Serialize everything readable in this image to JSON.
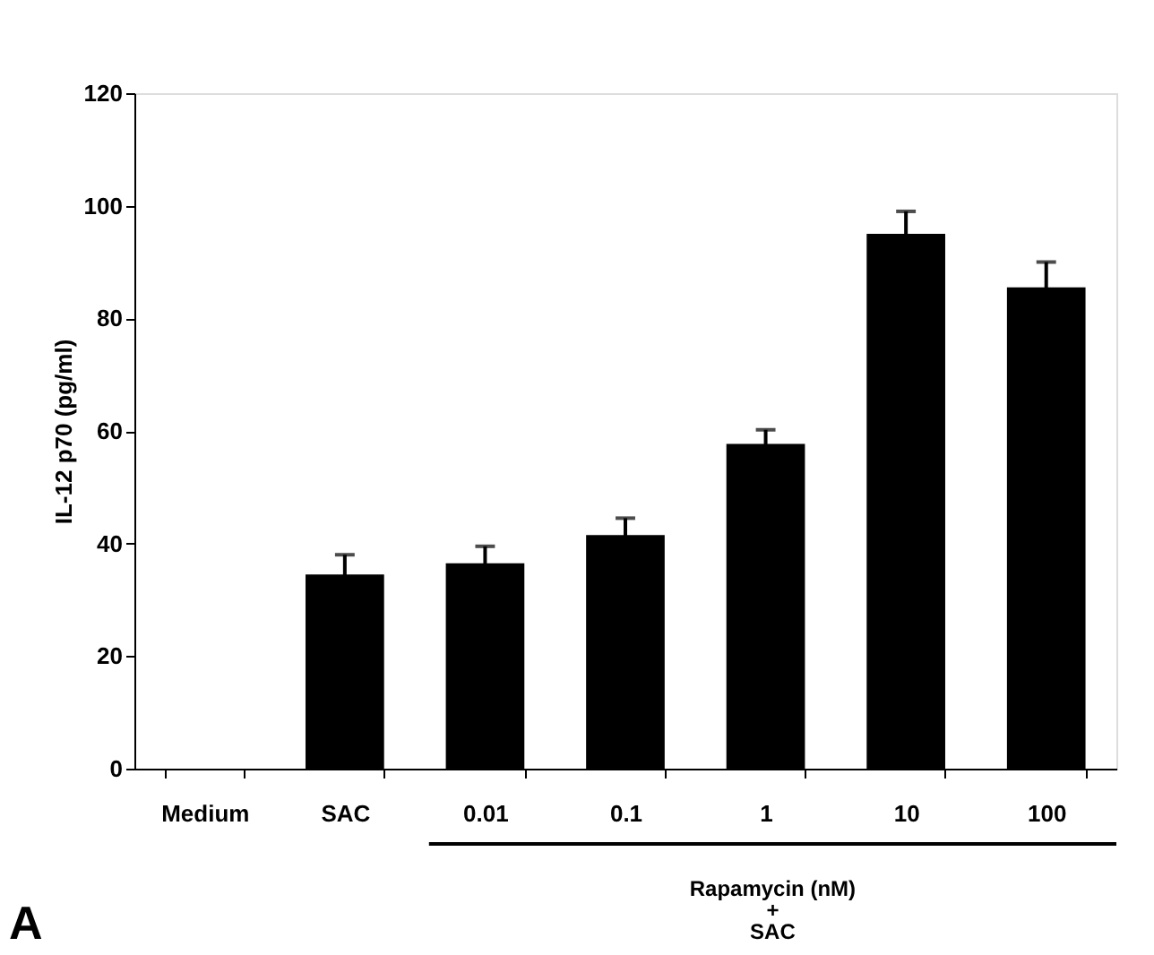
{
  "chart_data": {
    "type": "bar",
    "categories": [
      "Medium",
      "SAC",
      "0.01",
      "0.1",
      "1",
      "10",
      "100"
    ],
    "values": [
      0,
      34.5,
      36.5,
      41.5,
      57.7,
      95,
      85.5
    ],
    "errors": [
      null,
      3.5,
      3,
      3,
      2.5,
      4,
      4.5
    ],
    "color": "#000000",
    "ylabel": "IL-12 p70 (pg/ml)",
    "ylim": [
      0,
      120
    ],
    "yticks": [
      0,
      20,
      40,
      60,
      80,
      100,
      120
    ],
    "grid": false,
    "annotations": [
      "Rapamycin (nM)\n+\nSAC",
      "A"
    ]
  }
}
